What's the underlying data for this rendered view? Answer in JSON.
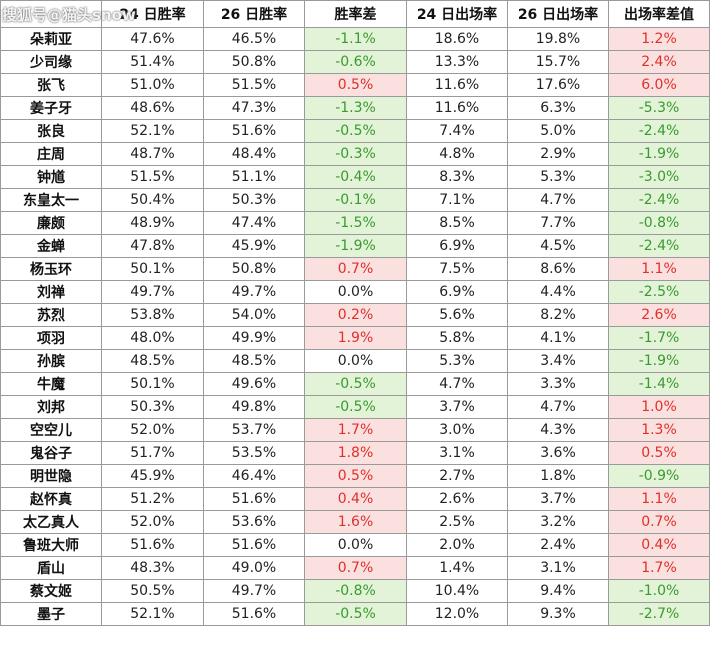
{
  "watermark": "搜狐号@猫头snow",
  "headers": [
    "",
    "24 日胜率",
    "26 日胜率",
    "胜率差",
    "24 日出场率",
    "26 日出场率",
    "出场率差值"
  ],
  "rows": [
    {
      "name": "朵莉亚",
      "wr24": "47.6%",
      "wr26": "46.5%",
      "wrdiff": "-1.1%",
      "wrsign": "neg",
      "pr24": "18.6%",
      "pr26": "19.8%",
      "prdiff": "1.2%",
      "prsign": "pos"
    },
    {
      "name": "少司缘",
      "wr24": "51.4%",
      "wr26": "50.8%",
      "wrdiff": "-0.6%",
      "wrsign": "neg",
      "pr24": "13.3%",
      "pr26": "15.7%",
      "prdiff": "2.4%",
      "prsign": "pos"
    },
    {
      "name": "张飞",
      "wr24": "51.0%",
      "wr26": "51.5%",
      "wrdiff": "0.5%",
      "wrsign": "pos",
      "pr24": "11.6%",
      "pr26": "17.6%",
      "prdiff": "6.0%",
      "prsign": "pos"
    },
    {
      "name": "姜子牙",
      "wr24": "48.6%",
      "wr26": "47.3%",
      "wrdiff": "-1.3%",
      "wrsign": "neg",
      "pr24": "11.6%",
      "pr26": "6.3%",
      "prdiff": "-5.3%",
      "prsign": "neg"
    },
    {
      "name": "张良",
      "wr24": "52.1%",
      "wr26": "51.6%",
      "wrdiff": "-0.5%",
      "wrsign": "neg",
      "pr24": "7.4%",
      "pr26": "5.0%",
      "prdiff": "-2.4%",
      "prsign": "neg"
    },
    {
      "name": "庄周",
      "wr24": "48.7%",
      "wr26": "48.4%",
      "wrdiff": "-0.3%",
      "wrsign": "neg",
      "pr24": "4.8%",
      "pr26": "2.9%",
      "prdiff": "-1.9%",
      "prsign": "neg"
    },
    {
      "name": "钟馗",
      "wr24": "51.5%",
      "wr26": "51.1%",
      "wrdiff": "-0.4%",
      "wrsign": "neg",
      "pr24": "8.3%",
      "pr26": "5.3%",
      "prdiff": "-3.0%",
      "prsign": "neg"
    },
    {
      "name": "东皇太一",
      "wr24": "50.4%",
      "wr26": "50.3%",
      "wrdiff": "-0.1%",
      "wrsign": "neg",
      "pr24": "7.1%",
      "pr26": "4.7%",
      "prdiff": "-2.4%",
      "prsign": "neg"
    },
    {
      "name": "廉颇",
      "wr24": "48.9%",
      "wr26": "47.4%",
      "wrdiff": "-1.5%",
      "wrsign": "neg",
      "pr24": "8.5%",
      "pr26": "7.7%",
      "prdiff": "-0.8%",
      "prsign": "neg"
    },
    {
      "name": "金蝉",
      "wr24": "47.8%",
      "wr26": "45.9%",
      "wrdiff": "-1.9%",
      "wrsign": "neg",
      "pr24": "6.9%",
      "pr26": "4.5%",
      "prdiff": "-2.4%",
      "prsign": "neg"
    },
    {
      "name": "杨玉环",
      "wr24": "50.1%",
      "wr26": "50.8%",
      "wrdiff": "0.7%",
      "wrsign": "pos",
      "pr24": "7.5%",
      "pr26": "8.6%",
      "prdiff": "1.1%",
      "prsign": "pos"
    },
    {
      "name": "刘禅",
      "wr24": "49.7%",
      "wr26": "49.7%",
      "wrdiff": "0.0%",
      "wrsign": "zero",
      "pr24": "6.9%",
      "pr26": "4.4%",
      "prdiff": "-2.5%",
      "prsign": "neg"
    },
    {
      "name": "苏烈",
      "wr24": "53.8%",
      "wr26": "54.0%",
      "wrdiff": "0.2%",
      "wrsign": "pos",
      "pr24": "5.6%",
      "pr26": "8.2%",
      "prdiff": "2.6%",
      "prsign": "pos"
    },
    {
      "name": "项羽",
      "wr24": "48.0%",
      "wr26": "49.9%",
      "wrdiff": "1.9%",
      "wrsign": "pos",
      "pr24": "5.8%",
      "pr26": "4.1%",
      "prdiff": "-1.7%",
      "prsign": "neg"
    },
    {
      "name": "孙膑",
      "wr24": "48.5%",
      "wr26": "48.5%",
      "wrdiff": "0.0%",
      "wrsign": "zero",
      "pr24": "5.3%",
      "pr26": "3.4%",
      "prdiff": "-1.9%",
      "prsign": "neg"
    },
    {
      "name": "牛魔",
      "wr24": "50.1%",
      "wr26": "49.6%",
      "wrdiff": "-0.5%",
      "wrsign": "neg",
      "pr24": "4.7%",
      "pr26": "3.3%",
      "prdiff": "-1.4%",
      "prsign": "neg"
    },
    {
      "name": "刘邦",
      "wr24": "50.3%",
      "wr26": "49.8%",
      "wrdiff": "-0.5%",
      "wrsign": "neg",
      "pr24": "3.7%",
      "pr26": "4.7%",
      "prdiff": "1.0%",
      "prsign": "pos"
    },
    {
      "name": "空空儿",
      "wr24": "52.0%",
      "wr26": "53.7%",
      "wrdiff": "1.7%",
      "wrsign": "pos",
      "pr24": "3.0%",
      "pr26": "4.3%",
      "prdiff": "1.3%",
      "prsign": "pos"
    },
    {
      "name": "鬼谷子",
      "wr24": "51.7%",
      "wr26": "53.5%",
      "wrdiff": "1.8%",
      "wrsign": "pos",
      "pr24": "3.1%",
      "pr26": "3.6%",
      "prdiff": "0.5%",
      "prsign": "pos"
    },
    {
      "name": "明世隐",
      "wr24": "45.9%",
      "wr26": "46.4%",
      "wrdiff": "0.5%",
      "wrsign": "pos",
      "pr24": "2.7%",
      "pr26": "1.8%",
      "prdiff": "-0.9%",
      "prsign": "neg"
    },
    {
      "name": "赵怀真",
      "wr24": "51.2%",
      "wr26": "51.6%",
      "wrdiff": "0.4%",
      "wrsign": "pos",
      "pr24": "2.6%",
      "pr26": "3.7%",
      "prdiff": "1.1%",
      "prsign": "pos"
    },
    {
      "name": "太乙真人",
      "wr24": "52.0%",
      "wr26": "53.6%",
      "wrdiff": "1.6%",
      "wrsign": "pos",
      "pr24": "2.5%",
      "pr26": "3.2%",
      "prdiff": "0.7%",
      "prsign": "pos"
    },
    {
      "name": "鲁班大师",
      "wr24": "51.6%",
      "wr26": "51.6%",
      "wrdiff": "0.0%",
      "wrsign": "zero",
      "pr24": "2.0%",
      "pr26": "2.4%",
      "prdiff": "0.4%",
      "prsign": "pos"
    },
    {
      "name": "盾山",
      "wr24": "48.3%",
      "wr26": "49.0%",
      "wrdiff": "0.7%",
      "wrsign": "pos",
      "pr24": "1.4%",
      "pr26": "3.1%",
      "prdiff": "1.7%",
      "prsign": "pos"
    },
    {
      "name": "蔡文姬",
      "wr24": "50.5%",
      "wr26": "49.7%",
      "wrdiff": "-0.8%",
      "wrsign": "neg",
      "pr24": "10.4%",
      "pr26": "9.4%",
      "prdiff": "-1.0%",
      "prsign": "neg"
    },
    {
      "name": "墨子",
      "wr24": "52.1%",
      "wr26": "51.6%",
      "wrdiff": "-0.5%",
      "wrsign": "neg",
      "pr24": "12.0%",
      "pr26": "9.3%",
      "prdiff": "-2.7%",
      "prsign": "neg"
    }
  ]
}
